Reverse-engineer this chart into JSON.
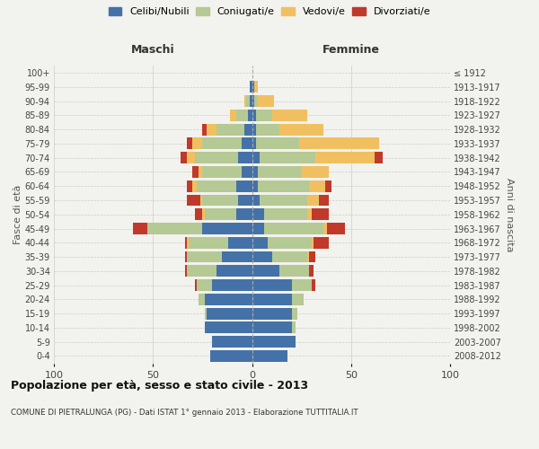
{
  "age_groups": [
    "0-4",
    "5-9",
    "10-14",
    "15-19",
    "20-24",
    "25-29",
    "30-34",
    "35-39",
    "40-44",
    "45-49",
    "50-54",
    "55-59",
    "60-64",
    "65-69",
    "70-74",
    "75-79",
    "80-84",
    "85-89",
    "90-94",
    "95-99",
    "100+"
  ],
  "birth_years": [
    "2008-2012",
    "2003-2007",
    "1998-2002",
    "1993-1997",
    "1988-1992",
    "1983-1987",
    "1978-1982",
    "1973-1977",
    "1968-1972",
    "1963-1967",
    "1958-1962",
    "1953-1957",
    "1948-1952",
    "1943-1947",
    "1938-1942",
    "1933-1937",
    "1928-1932",
    "1923-1927",
    "1918-1922",
    "1913-1917",
    "≤ 1912"
  ],
  "maschi": {
    "celibi": [
      21,
      20,
      24,
      23,
      24,
      20,
      18,
      15,
      12,
      25,
      8,
      7,
      8,
      5,
      7,
      5,
      4,
      2,
      1,
      1,
      0
    ],
    "coniugati": [
      0,
      0,
      0,
      1,
      3,
      8,
      15,
      18,
      20,
      28,
      16,
      18,
      20,
      20,
      22,
      20,
      14,
      6,
      2,
      0,
      0
    ],
    "vedovi": [
      0,
      0,
      0,
      0,
      0,
      0,
      0,
      0,
      1,
      0,
      1,
      1,
      2,
      2,
      4,
      5,
      5,
      3,
      1,
      0,
      0
    ],
    "divorziati": [
      0,
      0,
      0,
      0,
      0,
      1,
      1,
      1,
      1,
      7,
      4,
      7,
      3,
      3,
      3,
      3,
      2,
      0,
      0,
      0,
      0
    ]
  },
  "femmine": {
    "nubili": [
      18,
      22,
      20,
      20,
      20,
      20,
      14,
      10,
      8,
      6,
      6,
      4,
      3,
      3,
      4,
      2,
      2,
      2,
      1,
      1,
      0
    ],
    "coniugate": [
      0,
      0,
      2,
      3,
      6,
      10,
      15,
      18,
      22,
      30,
      22,
      24,
      26,
      22,
      28,
      22,
      12,
      8,
      2,
      0,
      0
    ],
    "vedove": [
      0,
      0,
      0,
      0,
      0,
      0,
      0,
      1,
      1,
      2,
      2,
      6,
      8,
      14,
      30,
      40,
      22,
      18,
      8,
      2,
      0
    ],
    "divorziate": [
      0,
      0,
      0,
      0,
      0,
      2,
      2,
      3,
      8,
      9,
      9,
      5,
      3,
      0,
      4,
      0,
      0,
      0,
      0,
      0,
      0
    ]
  },
  "colors": {
    "celibi": "#4472a8",
    "coniugati": "#b5c994",
    "vedovi": "#f0c060",
    "divorziati": "#c0392b"
  },
  "xlim": 100,
  "title": "Popolazione per età, sesso e stato civile - 2013",
  "subtitle": "COMUNE DI PIETRALUNGA (PG) - Dati ISTAT 1° gennaio 2013 - Elaborazione TUTTITALIA.IT",
  "ylabel_left": "Fasce di età",
  "ylabel_right": "Anni di nascita",
  "xlabel_left": "Maschi",
  "xlabel_right": "Femmine",
  "bg_color": "#f2f2ee",
  "grid_color": "#cccccc"
}
